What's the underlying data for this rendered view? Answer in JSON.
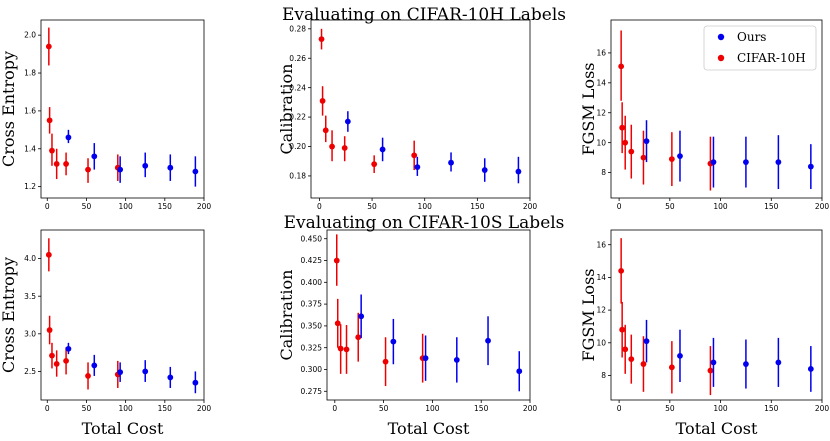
{
  "titles": {
    "top": "Evaluating on CIFAR-10H Labels",
    "bottom": "Evaluating on CIFAR-10S Labels"
  },
  "legend": {
    "ours": "Ours",
    "cifar": "CIFAR-10H"
  },
  "colors": {
    "ours": "#0000ee",
    "cifar": "#ee0000"
  },
  "chart_data": [
    {
      "type": "scatter",
      "name": "top-cross-entropy",
      "ylabel": "Cross Entropy",
      "xlabel": "",
      "xlim": [
        -8,
        200
      ],
      "ylim": [
        1.14,
        2.08
      ],
      "xticks": [
        "0",
        "50",
        "100",
        "150",
        "200"
      ],
      "xtickvals": [
        0,
        50,
        100,
        150,
        200
      ],
      "yticks": [
        "1.2",
        "1.4",
        "1.6",
        "1.8",
        "2.0"
      ],
      "ytickvals": [
        1.2,
        1.4,
        1.6,
        1.8,
        2.0
      ],
      "series": [
        {
          "name": "CIFAR-10H",
          "color": "cifar",
          "points": [
            {
              "x": 2,
              "y": 1.94,
              "lo": 1.84,
              "hi": 2.04
            },
            {
              "x": 3,
              "y": 1.55,
              "lo": 1.48,
              "hi": 1.62
            },
            {
              "x": 6,
              "y": 1.39,
              "lo": 1.31,
              "hi": 1.48
            },
            {
              "x": 12,
              "y": 1.32,
              "lo": 1.24,
              "hi": 1.4
            },
            {
              "x": 24,
              "y": 1.32,
              "lo": 1.26,
              "hi": 1.38
            },
            {
              "x": 52,
              "y": 1.29,
              "lo": 1.22,
              "hi": 1.35
            },
            {
              "x": 90,
              "y": 1.3,
              "lo": 1.23,
              "hi": 1.37
            }
          ]
        },
        {
          "name": "Ours",
          "color": "ours",
          "points": [
            {
              "x": 27,
              "y": 1.46,
              "lo": 1.43,
              "hi": 1.5
            },
            {
              "x": 60,
              "y": 1.36,
              "lo": 1.29,
              "hi": 1.43
            },
            {
              "x": 93,
              "y": 1.29,
              "lo": 1.22,
              "hi": 1.36
            },
            {
              "x": 125,
              "y": 1.31,
              "lo": 1.25,
              "hi": 1.38
            },
            {
              "x": 157,
              "y": 1.3,
              "lo": 1.23,
              "hi": 1.37
            },
            {
              "x": 189,
              "y": 1.28,
              "lo": 1.2,
              "hi": 1.36
            }
          ]
        }
      ]
    },
    {
      "type": "scatter",
      "name": "top-calibration",
      "ylabel": "Calibration",
      "xlabel": "",
      "xlim": [
        -8,
        200
      ],
      "ylim": [
        0.165,
        0.286
      ],
      "xticks": [
        "0",
        "50",
        "100",
        "150",
        "200"
      ],
      "xtickvals": [
        0,
        50,
        100,
        150,
        200
      ],
      "yticks": [
        "0.18",
        "0.20",
        "0.22",
        "0.24",
        "0.26",
        "0.28"
      ],
      "ytickvals": [
        0.18,
        0.2,
        0.22,
        0.24,
        0.26,
        0.28
      ],
      "series": [
        {
          "name": "CIFAR-10H",
          "color": "cifar",
          "points": [
            {
              "x": 2,
              "y": 0.273,
              "lo": 0.266,
              "hi": 0.28
            },
            {
              "x": 3,
              "y": 0.231,
              "lo": 0.221,
              "hi": 0.241
            },
            {
              "x": 6,
              "y": 0.211,
              "lo": 0.203,
              "hi": 0.221
            },
            {
              "x": 12,
              "y": 0.2,
              "lo": 0.19,
              "hi": 0.211
            },
            {
              "x": 24,
              "y": 0.199,
              "lo": 0.19,
              "hi": 0.207
            },
            {
              "x": 52,
              "y": 0.188,
              "lo": 0.182,
              "hi": 0.194
            },
            {
              "x": 90,
              "y": 0.194,
              "lo": 0.184,
              "hi": 0.204
            }
          ]
        },
        {
          "name": "Ours",
          "color": "ours",
          "points": [
            {
              "x": 27,
              "y": 0.217,
              "lo": 0.21,
              "hi": 0.224
            },
            {
              "x": 60,
              "y": 0.198,
              "lo": 0.19,
              "hi": 0.206
            },
            {
              "x": 93,
              "y": 0.186,
              "lo": 0.18,
              "hi": 0.193
            },
            {
              "x": 125,
              "y": 0.189,
              "lo": 0.183,
              "hi": 0.196
            },
            {
              "x": 157,
              "y": 0.184,
              "lo": 0.176,
              "hi": 0.192
            },
            {
              "x": 189,
              "y": 0.183,
              "lo": 0.175,
              "hi": 0.193
            }
          ]
        }
      ]
    },
    {
      "type": "scatter",
      "name": "top-fgsm-loss",
      "ylabel": "FGSM Loss",
      "xlabel": "",
      "xlim": [
        -8,
        200
      ],
      "ylim": [
        6.3,
        18.2
      ],
      "xticks": [
        "0",
        "50",
        "100",
        "150",
        "200"
      ],
      "xtickvals": [
        0,
        50,
        100,
        150,
        200
      ],
      "yticks": [
        "8",
        "10",
        "12",
        "14",
        "16"
      ],
      "ytickvals": [
        8,
        10,
        12,
        14,
        16
      ],
      "series": [
        {
          "name": "CIFAR-10H",
          "color": "cifar",
          "points": [
            {
              "x": 2,
              "y": 15.1,
              "lo": 12.8,
              "hi": 17.5
            },
            {
              "x": 3,
              "y": 11.0,
              "lo": 9.3,
              "hi": 12.7
            },
            {
              "x": 6,
              "y": 10.0,
              "lo": 8.2,
              "hi": 11.8
            },
            {
              "x": 12,
              "y": 9.4,
              "lo": 7.6,
              "hi": 11.2
            },
            {
              "x": 24,
              "y": 9.0,
              "lo": 7.2,
              "hi": 10.8
            },
            {
              "x": 52,
              "y": 8.9,
              "lo": 7.1,
              "hi": 10.7
            },
            {
              "x": 90,
              "y": 8.6,
              "lo": 6.8,
              "hi": 10.4
            }
          ]
        },
        {
          "name": "Ours",
          "color": "ours",
          "points": [
            {
              "x": 27,
              "y": 10.1,
              "lo": 8.7,
              "hi": 11.5
            },
            {
              "x": 60,
              "y": 9.1,
              "lo": 7.4,
              "hi": 10.8
            },
            {
              "x": 93,
              "y": 8.7,
              "lo": 7.0,
              "hi": 10.4
            },
            {
              "x": 125,
              "y": 8.7,
              "lo": 7.0,
              "hi": 10.4
            },
            {
              "x": 157,
              "y": 8.7,
              "lo": 6.9,
              "hi": 10.5
            },
            {
              "x": 189,
              "y": 8.4,
              "lo": 6.9,
              "hi": 9.9
            }
          ]
        }
      ]
    },
    {
      "type": "scatter",
      "name": "bottom-cross-entropy",
      "ylabel": "Cross Entropy",
      "xlabel": "Total Cost",
      "xlim": [
        -8,
        200
      ],
      "ylim": [
        2.12,
        4.38
      ],
      "xticks": [
        "0",
        "50",
        "100",
        "150",
        "200"
      ],
      "xtickvals": [
        0,
        50,
        100,
        150,
        200
      ],
      "yticks": [
        "2.5",
        "3.0",
        "3.5",
        "4.0"
      ],
      "ytickvals": [
        2.5,
        3.0,
        3.5,
        4.0
      ],
      "series": [
        {
          "name": "CIFAR-10H",
          "color": "cifar",
          "points": [
            {
              "x": 2,
              "y": 4.05,
              "lo": 3.83,
              "hi": 4.27
            },
            {
              "x": 3,
              "y": 3.05,
              "lo": 2.86,
              "hi": 3.24
            },
            {
              "x": 6,
              "y": 2.71,
              "lo": 2.54,
              "hi": 2.88
            },
            {
              "x": 12,
              "y": 2.6,
              "lo": 2.43,
              "hi": 2.78
            },
            {
              "x": 24,
              "y": 2.64,
              "lo": 2.46,
              "hi": 2.82
            },
            {
              "x": 52,
              "y": 2.44,
              "lo": 2.26,
              "hi": 2.62
            },
            {
              "x": 90,
              "y": 2.46,
              "lo": 2.28,
              "hi": 2.64
            }
          ]
        },
        {
          "name": "Ours",
          "color": "ours",
          "points": [
            {
              "x": 27,
              "y": 2.8,
              "lo": 2.73,
              "hi": 2.88
            },
            {
              "x": 60,
              "y": 2.58,
              "lo": 2.44,
              "hi": 2.72
            },
            {
              "x": 93,
              "y": 2.49,
              "lo": 2.36,
              "hi": 2.62
            },
            {
              "x": 125,
              "y": 2.5,
              "lo": 2.36,
              "hi": 2.65
            },
            {
              "x": 157,
              "y": 2.42,
              "lo": 2.28,
              "hi": 2.56
            },
            {
              "x": 189,
              "y": 2.35,
              "lo": 2.21,
              "hi": 2.5
            }
          ]
        }
      ]
    },
    {
      "type": "scatter",
      "name": "bottom-calibration",
      "ylabel": "Calibration",
      "xlabel": "Total Cost",
      "xlim": [
        -8,
        200
      ],
      "ylim": [
        0.265,
        0.46
      ],
      "xticks": [
        "0",
        "50",
        "100",
        "150",
        "200"
      ],
      "xtickvals": [
        0,
        50,
        100,
        150,
        200
      ],
      "yticks": [
        "0.275",
        "0.300",
        "0.325",
        "0.350",
        "0.375",
        "0.400",
        "0.425",
        "0.450"
      ],
      "ytickvals": [
        0.275,
        0.3,
        0.325,
        0.35,
        0.375,
        0.4,
        0.425,
        0.45
      ],
      "series": [
        {
          "name": "CIFAR-10H",
          "color": "cifar",
          "points": [
            {
              "x": 2,
              "y": 0.425,
              "lo": 0.396,
              "hi": 0.455
            },
            {
              "x": 3,
              "y": 0.353,
              "lo": 0.325,
              "hi": 0.381
            },
            {
              "x": 6,
              "y": 0.324,
              "lo": 0.295,
              "hi": 0.352
            },
            {
              "x": 12,
              "y": 0.323,
              "lo": 0.295,
              "hi": 0.351
            },
            {
              "x": 24,
              "y": 0.337,
              "lo": 0.309,
              "hi": 0.365
            },
            {
              "x": 52,
              "y": 0.309,
              "lo": 0.281,
              "hi": 0.337
            },
            {
              "x": 90,
              "y": 0.313,
              "lo": 0.285,
              "hi": 0.341
            }
          ]
        },
        {
          "name": "Ours",
          "color": "ours",
          "points": [
            {
              "x": 27,
              "y": 0.361,
              "lo": 0.336,
              "hi": 0.386
            },
            {
              "x": 60,
              "y": 0.332,
              "lo": 0.306,
              "hi": 0.358
            },
            {
              "x": 93,
              "y": 0.313,
              "lo": 0.287,
              "hi": 0.339
            },
            {
              "x": 125,
              "y": 0.311,
              "lo": 0.285,
              "hi": 0.337
            },
            {
              "x": 157,
              "y": 0.333,
              "lo": 0.305,
              "hi": 0.361
            },
            {
              "x": 189,
              "y": 0.298,
              "lo": 0.275,
              "hi": 0.321
            }
          ]
        }
      ]
    },
    {
      "type": "scatter",
      "name": "bottom-fgsm-loss",
      "ylabel": "FGSM Loss",
      "xlabel": "Total Cost",
      "xlim": [
        -8,
        200
      ],
      "ylim": [
        6.5,
        16.9
      ],
      "xticks": [
        "0",
        "50",
        "100",
        "150",
        "200"
      ],
      "xtickvals": [
        0,
        50,
        100,
        150,
        200
      ],
      "yticks": [
        "8",
        "10",
        "12",
        "14",
        "16"
      ],
      "ytickvals": [
        8,
        10,
        12,
        14,
        16
      ],
      "series": [
        {
          "name": "CIFAR-10H",
          "color": "cifar",
          "points": [
            {
              "x": 2,
              "y": 14.4,
              "lo": 12.4,
              "hi": 16.4
            },
            {
              "x": 3,
              "y": 10.8,
              "lo": 9.1,
              "hi": 12.5
            },
            {
              "x": 6,
              "y": 9.6,
              "lo": 8.1,
              "hi": 11.1
            },
            {
              "x": 12,
              "y": 9.0,
              "lo": 7.5,
              "hi": 10.5
            },
            {
              "x": 24,
              "y": 8.7,
              "lo": 7.0,
              "hi": 10.4
            },
            {
              "x": 52,
              "y": 8.5,
              "lo": 6.9,
              "hi": 10.1
            },
            {
              "x": 90,
              "y": 8.3,
              "lo": 6.8,
              "hi": 9.8
            }
          ]
        },
        {
          "name": "Ours",
          "color": "ours",
          "points": [
            {
              "x": 27,
              "y": 10.1,
              "lo": 8.8,
              "hi": 11.4
            },
            {
              "x": 60,
              "y": 9.2,
              "lo": 7.6,
              "hi": 10.8
            },
            {
              "x": 93,
              "y": 8.8,
              "lo": 7.3,
              "hi": 10.3
            },
            {
              "x": 125,
              "y": 8.7,
              "lo": 7.2,
              "hi": 10.2
            },
            {
              "x": 157,
              "y": 8.8,
              "lo": 7.3,
              "hi": 10.3
            },
            {
              "x": 189,
              "y": 8.4,
              "lo": 7.0,
              "hi": 9.8
            }
          ]
        }
      ]
    }
  ]
}
